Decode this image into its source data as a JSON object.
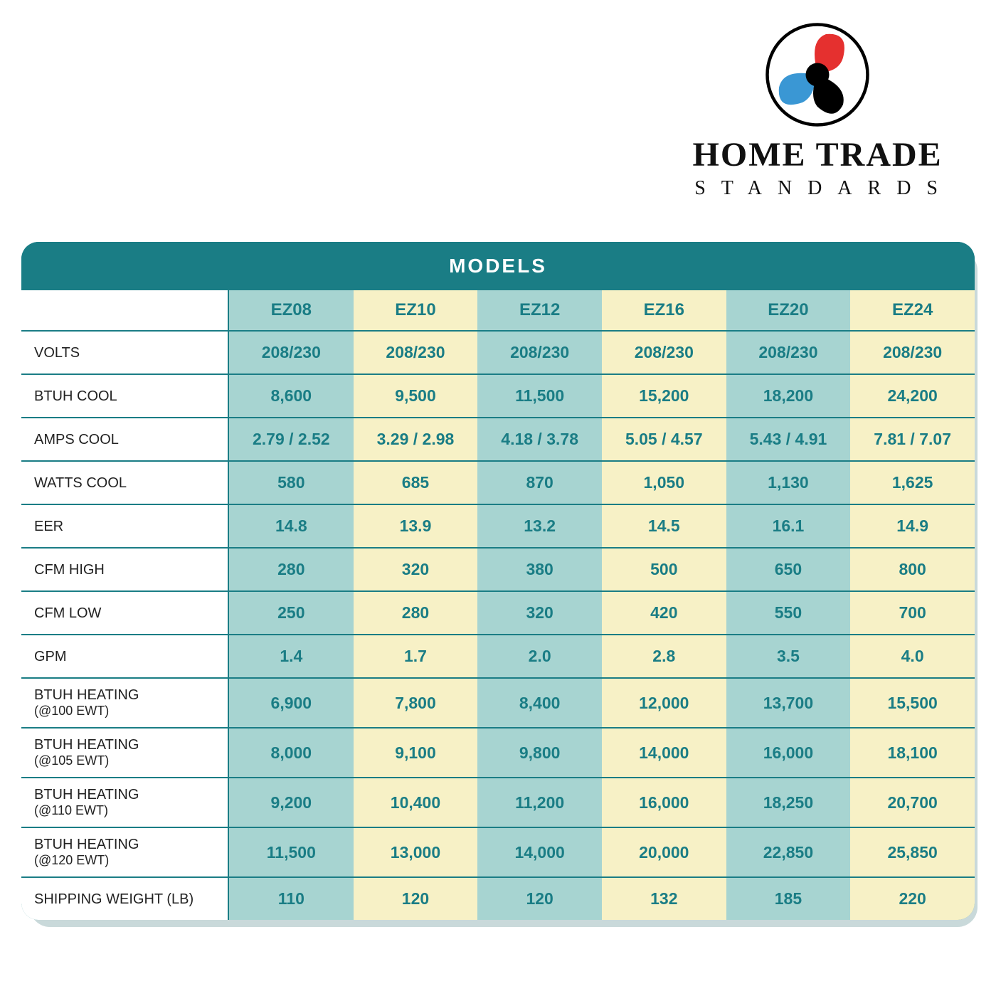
{
  "logo": {
    "title": "HOME TRADE",
    "subtitle": "STANDARDS",
    "circle_stroke": "#000000",
    "blade_colors": {
      "top": "#e5302f",
      "left": "#3a97d4",
      "center": "#000000"
    }
  },
  "table": {
    "title": "MODELS",
    "header_bg": "#1a7d85",
    "header_text_color": "#ffffff",
    "cell_text_color": "#1a7d85",
    "border_color": "#1a7d85",
    "col_colors": [
      "#a7d4d1",
      "#f7f1c6",
      "#a7d4d1",
      "#f7f1c6",
      "#a7d4d1",
      "#f7f1c6"
    ],
    "shadow_color": "#c9d9da",
    "font_size_title": 28,
    "font_size_header": 24,
    "font_size_cell": 23,
    "font_size_rowlabel": 20,
    "columns": [
      "EZ08",
      "EZ10",
      "EZ12",
      "EZ16",
      "EZ20",
      "EZ24"
    ],
    "rows": [
      {
        "label": "VOLTS",
        "values": [
          "208/230",
          "208/230",
          "208/230",
          "208/230",
          "208/230",
          "208/230"
        ]
      },
      {
        "label": "BTUH COOL",
        "values": [
          "8,600",
          "9,500",
          "11,500",
          "15,200",
          "18,200",
          "24,200"
        ]
      },
      {
        "label": "AMPS COOL",
        "values": [
          "2.79 / 2.52",
          "3.29 / 2.98",
          "4.18 / 3.78",
          "5.05 / 4.57",
          "5.43 / 4.91",
          "7.81 / 7.07"
        ]
      },
      {
        "label": "WATTS COOL",
        "values": [
          "580",
          "685",
          "870",
          "1,050",
          "1,130",
          "1,625"
        ]
      },
      {
        "label": "EER",
        "values": [
          "14.8",
          "13.9",
          "13.2",
          "14.5",
          "16.1",
          "14.9"
        ]
      },
      {
        "label": "CFM HIGH",
        "values": [
          "280",
          "320",
          "380",
          "500",
          "650",
          "800"
        ]
      },
      {
        "label": "CFM LOW",
        "values": [
          "250",
          "280",
          "320",
          "420",
          "550",
          "700"
        ]
      },
      {
        "label": "GPM",
        "values": [
          "1.4",
          "1.7",
          "2.0",
          "2.8",
          "3.5",
          "4.0"
        ]
      },
      {
        "label": "BTUH HEATING\n(@100 EWT)",
        "values": [
          "6,900",
          "7,800",
          "8,400",
          "12,000",
          "13,700",
          "15,500"
        ]
      },
      {
        "label": "BTUH HEATING\n(@105 EWT)",
        "values": [
          "8,000",
          "9,100",
          "9,800",
          "14,000",
          "16,000",
          "18,100"
        ]
      },
      {
        "label": "BTUH HEATING\n(@110 EWT)",
        "values": [
          "9,200",
          "10,400",
          "11,200",
          "16,000",
          "18,250",
          "20,700"
        ]
      },
      {
        "label": "BTUH HEATING\n(@120 EWT)",
        "values": [
          "11,500",
          "13,000",
          "14,000",
          "20,000",
          "22,850",
          "25,850"
        ]
      },
      {
        "label": "SHIPPING WEIGHT (LB)",
        "values": [
          "110",
          "120",
          "120",
          "132",
          "185",
          "220"
        ]
      }
    ]
  }
}
